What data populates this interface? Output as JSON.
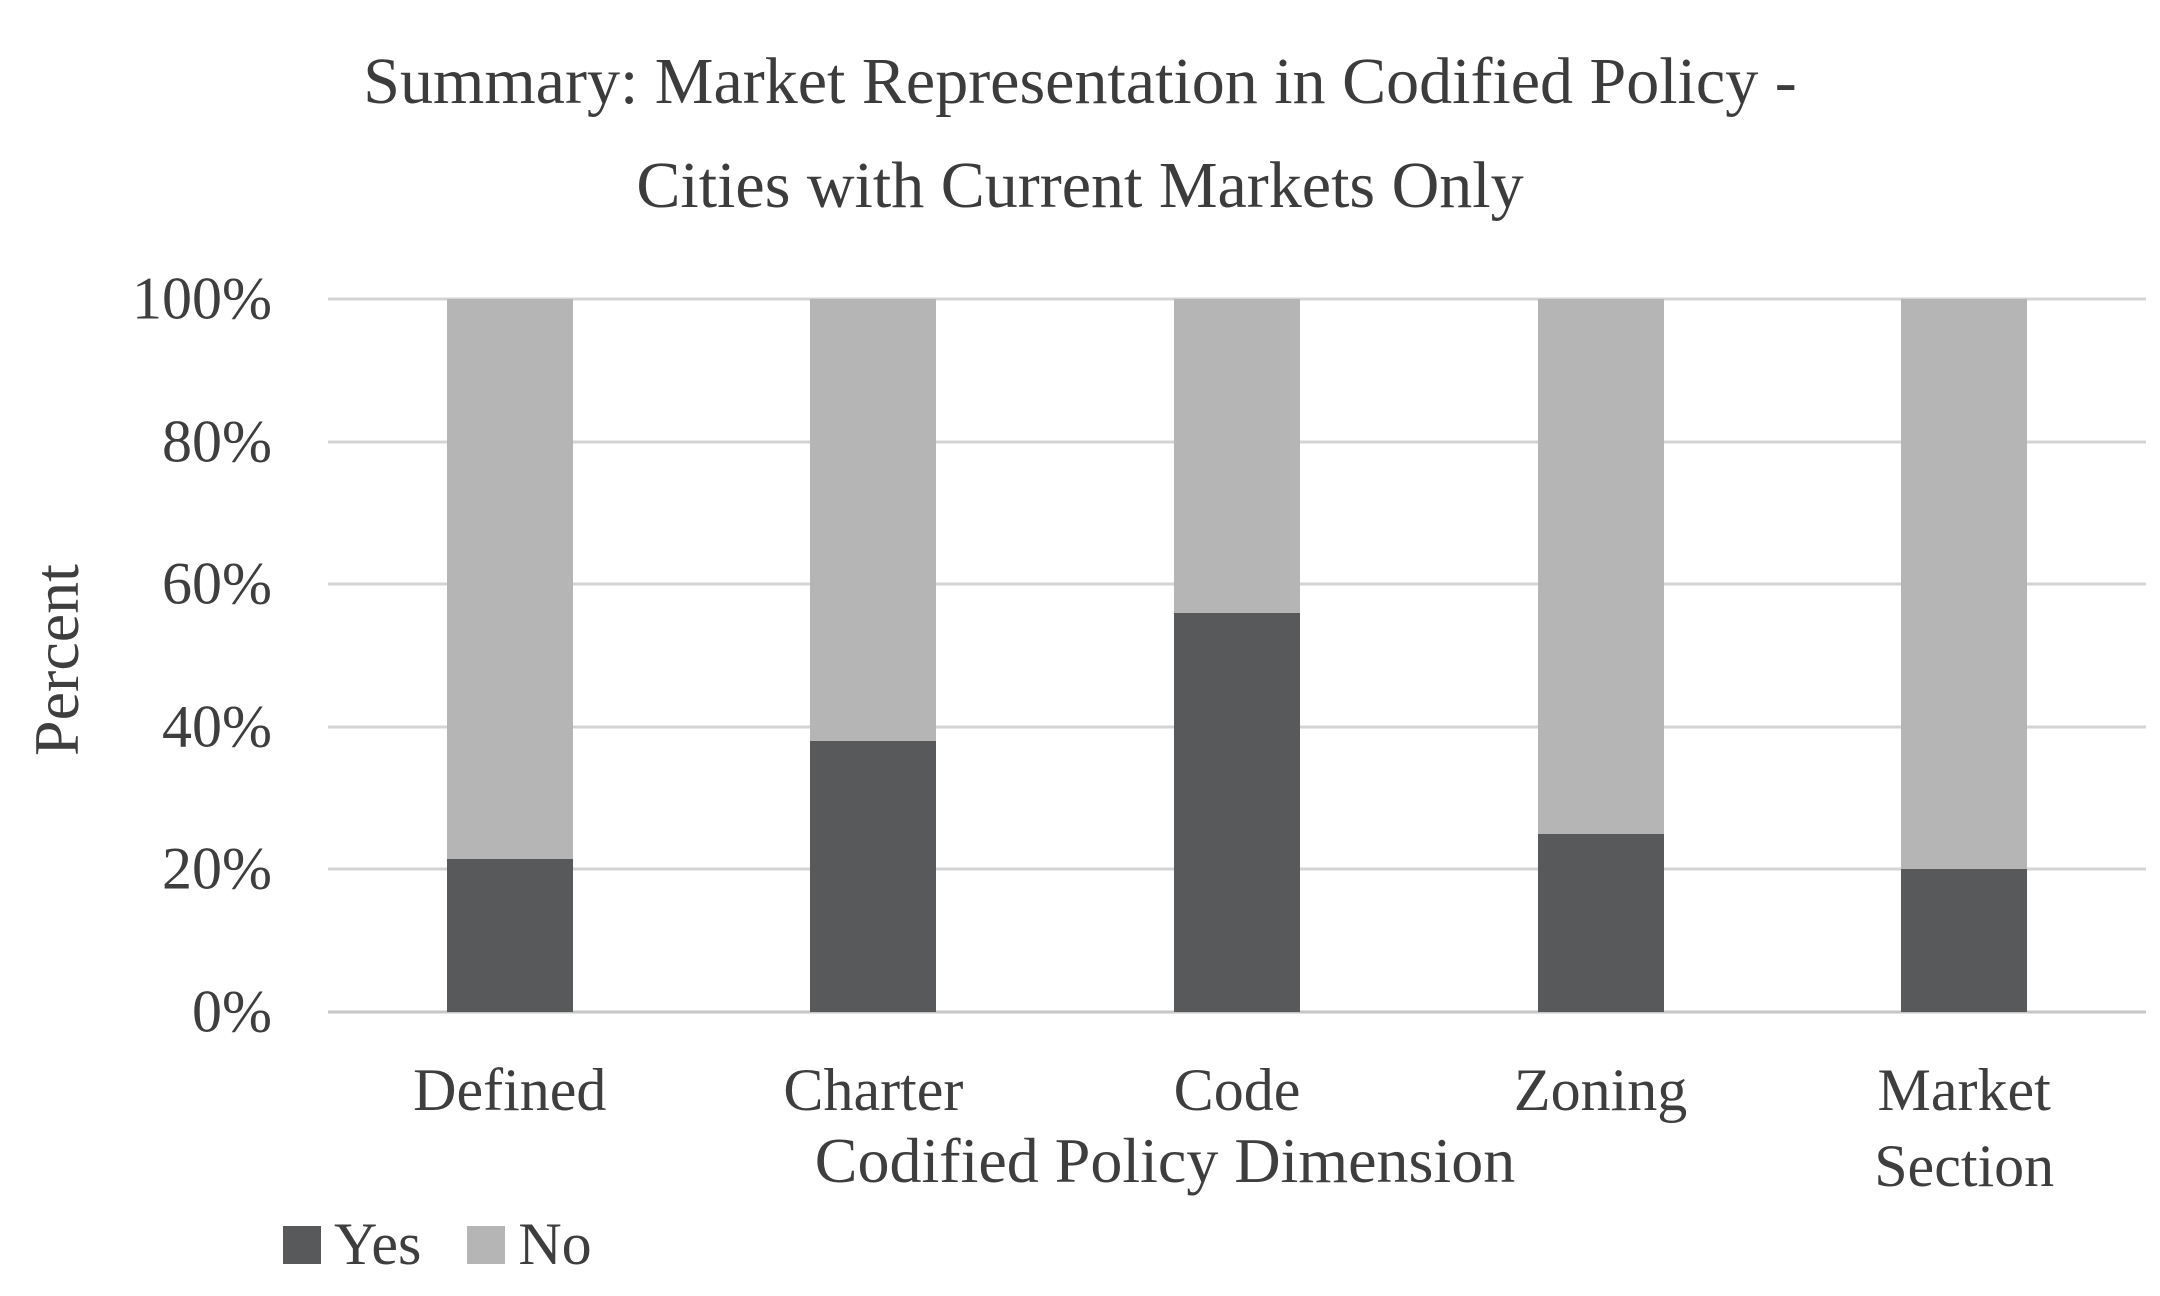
{
  "chart_data": {
    "type": "bar",
    "stacked": true,
    "percent_stacked": true,
    "title": "Summary: Market Representation in Codified Policy - Cities with Current Markets Only",
    "title_line1": "Summary: Market Representation in Codified Policy -",
    "title_line2": "Cities with Current Markets Only",
    "xlabel": "Codified Policy Dimension",
    "ylabel": "Percent",
    "categories": [
      "Defined",
      "Charter",
      "Code",
      "Zoning",
      "Market Section"
    ],
    "series": [
      {
        "name": "Yes",
        "color": "#58595a",
        "values": [
          21.5,
          38,
          56,
          25,
          20
        ]
      },
      {
        "name": "No",
        "color": "#b4b5b4",
        "values": [
          78.5,
          62,
          44,
          75,
          80
        ]
      }
    ],
    "ylim": [
      0,
      100
    ],
    "yticks": [
      "0%",
      "20%",
      "40%",
      "60%",
      "80%",
      "100%"
    ],
    "grid": true,
    "legend_position": "bottom-left"
  },
  "colors": {
    "background": "#ffffff",
    "text": "#3e3e3e",
    "gridline": "#d4d4d4",
    "axis_line": "#c6c6c6",
    "yes": "#58595a",
    "no": "#b4b5b4"
  }
}
